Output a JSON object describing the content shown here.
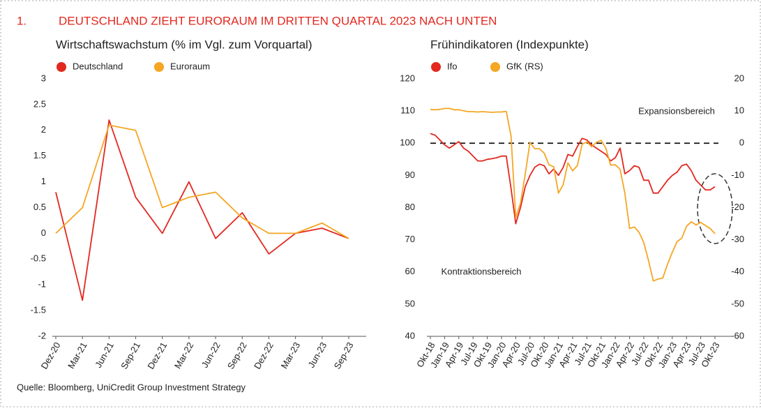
{
  "header": {
    "number": "1.",
    "title": "DEUTSCHLAND ZIEHT EURORAUM IM DRITTEN QUARTAL 2023 NACH UNTEN"
  },
  "source": "Quelle: Bloomberg, UniCredit Group Investment Strategy",
  "chart_data": [
    {
      "type": "line",
      "title": "Wirtschaftswachstum (% im Vgl. zum Vorquartal)",
      "categories": [
        "Dez-20",
        "Mar-21",
        "Jun-21",
        "Sep-21",
        "Dez-21",
        "Mar-22",
        "Jun-22",
        "Sep-22",
        "Dez-22",
        "Mar-23",
        "Jun-23",
        "Sep-23"
      ],
      "series": [
        {
          "name": "Deutschland",
          "color": "#e2281f",
          "values": [
            0.8,
            -1.3,
            2.2,
            0.7,
            0.0,
            1.0,
            -0.1,
            0.4,
            -0.4,
            0.0,
            0.1,
            -0.1
          ]
        },
        {
          "name": "Euroraum",
          "color": "#f5a623",
          "values": [
            0.0,
            0.5,
            2.1,
            2.0,
            0.5,
            0.7,
            0.8,
            0.3,
            0.0,
            0.0,
            0.2,
            -0.1
          ]
        }
      ],
      "ylim": [
        -2,
        3
      ],
      "yticks": [
        3,
        2.5,
        2,
        1.5,
        1,
        0.5,
        0,
        -0.5,
        -1,
        -1.5,
        -2
      ],
      "grid": false
    },
    {
      "type": "line",
      "title": "Frühindikatoren (Indexpunkte)",
      "categories": [
        "Okt-18",
        null,
        null,
        "Jan-19",
        null,
        null,
        "Apr-19",
        null,
        null,
        "Jul-19",
        null,
        null,
        "Okt-19",
        null,
        null,
        "Jan-20",
        null,
        null,
        "Apr-20",
        null,
        null,
        "Jul-20",
        null,
        null,
        "Okt-20",
        null,
        null,
        "Jan-21",
        null,
        null,
        "Apr-21",
        null,
        null,
        "Jul-21",
        null,
        null,
        "Okt-21",
        null,
        null,
        "Jan-22",
        null,
        null,
        "Apr-22",
        null,
        null,
        "Jul-22",
        null,
        null,
        "Okt-22",
        null,
        null,
        "Jan-23",
        null,
        null,
        "Apr-23",
        null,
        null,
        "Jul-23",
        null,
        null,
        "Okt-23"
      ],
      "series": [
        {
          "name": "Ifo",
          "color": "#e2281f",
          "values": [
            103,
            102.5,
            101,
            99.5,
            98.5,
            99.5,
            100.5,
            98.5,
            97.5,
            96,
            94.5,
            94.5,
            95,
            95.2,
            95.5,
            96,
            96,
            86,
            75,
            80,
            86.5,
            90,
            92.5,
            93.5,
            93,
            90.5,
            92,
            90,
            92.5,
            96.5,
            96,
            99,
            101.5,
            101,
            99.5,
            98.5,
            97.5,
            96.5,
            94.5,
            95.5,
            98.5,
            90.5,
            91.5,
            93,
            92.5,
            88.5,
            88.5,
            84.5,
            84.5,
            86.5,
            88.5,
            90,
            91,
            93,
            93.5,
            91.5,
            88.5,
            87,
            85.5,
            85.5,
            86.5
          ]
        },
        {
          "name": "GfK (RS)",
          "color": "#f5a623",
          "axis": "y2",
          "values": [
            10.5,
            10.4,
            10.5,
            10.8,
            10.8,
            10.4,
            10.4,
            10.1,
            9.8,
            9.8,
            9.7,
            9.8,
            9.7,
            9.6,
            9.7,
            9.7,
            9.9,
            2.3,
            -23.1,
            -18.6,
            -9.6,
            0.3,
            -1.7,
            -1.7,
            -3.1,
            -6.7,
            -7.3,
            -15.5,
            -12.9,
            -6.1,
            -8.6,
            -6.9,
            -0.3,
            0.4,
            -1.1,
            0.3,
            0.9,
            -1.6,
            -6.8,
            -6.7,
            -8.1,
            -15.5,
            -26.5,
            -26.0,
            -27.7,
            -30.9,
            -36.5,
            -42.8,
            -42.2,
            -41.9,
            -37.6,
            -33.9,
            -30.6,
            -29.5,
            -25.8,
            -24.4,
            -25.4,
            -24.6,
            -25.6,
            -26.5,
            -28.1
          ]
        }
      ],
      "ylim": [
        40,
        120
      ],
      "yticks": [
        120,
        110,
        100,
        90,
        80,
        70,
        60,
        50,
        40
      ],
      "y2lim": [
        -60,
        20
      ],
      "y2ticks": [
        20,
        10,
        0,
        -10,
        -20,
        -30,
        -40,
        -50,
        -60
      ],
      "hline": 100,
      "grid": false,
      "annotations": [
        "Expansionsbereich",
        "Kontraktionsbereich"
      ]
    }
  ]
}
